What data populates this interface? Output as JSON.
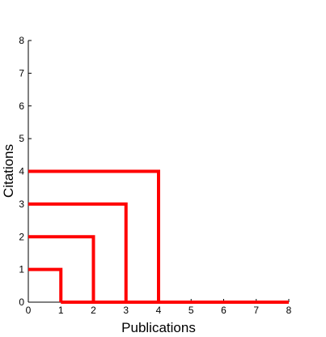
{
  "chart_data": {
    "type": "line",
    "x_label": "Publications",
    "y_label": "Citations",
    "xlim": [
      0,
      8
    ],
    "ylim": [
      0,
      8
    ],
    "xticks": [
      0,
      1,
      2,
      3,
      4,
      5,
      6,
      7,
      8
    ],
    "yticks": [
      0,
      1,
      2,
      3,
      4,
      5,
      6,
      7,
      8
    ],
    "grid": false,
    "series": [
      {
        "color": "#ff0000",
        "x": [
          0,
          1,
          1
        ],
        "values": [
          1,
          1,
          0
        ]
      },
      {
        "color": "#ff0000",
        "x": [
          0,
          2,
          2
        ],
        "values": [
          2,
          2,
          0
        ]
      },
      {
        "color": "#ff0000",
        "x": [
          0,
          3,
          3
        ],
        "values": [
          3,
          3,
          0
        ]
      },
      {
        "color": "#ff0000",
        "x": [
          0,
          4,
          4
        ],
        "values": [
          4,
          4,
          0
        ]
      },
      {
        "color": "#ff0000",
        "x": [
          1,
          8
        ],
        "values": [
          0,
          0
        ]
      }
    ]
  }
}
